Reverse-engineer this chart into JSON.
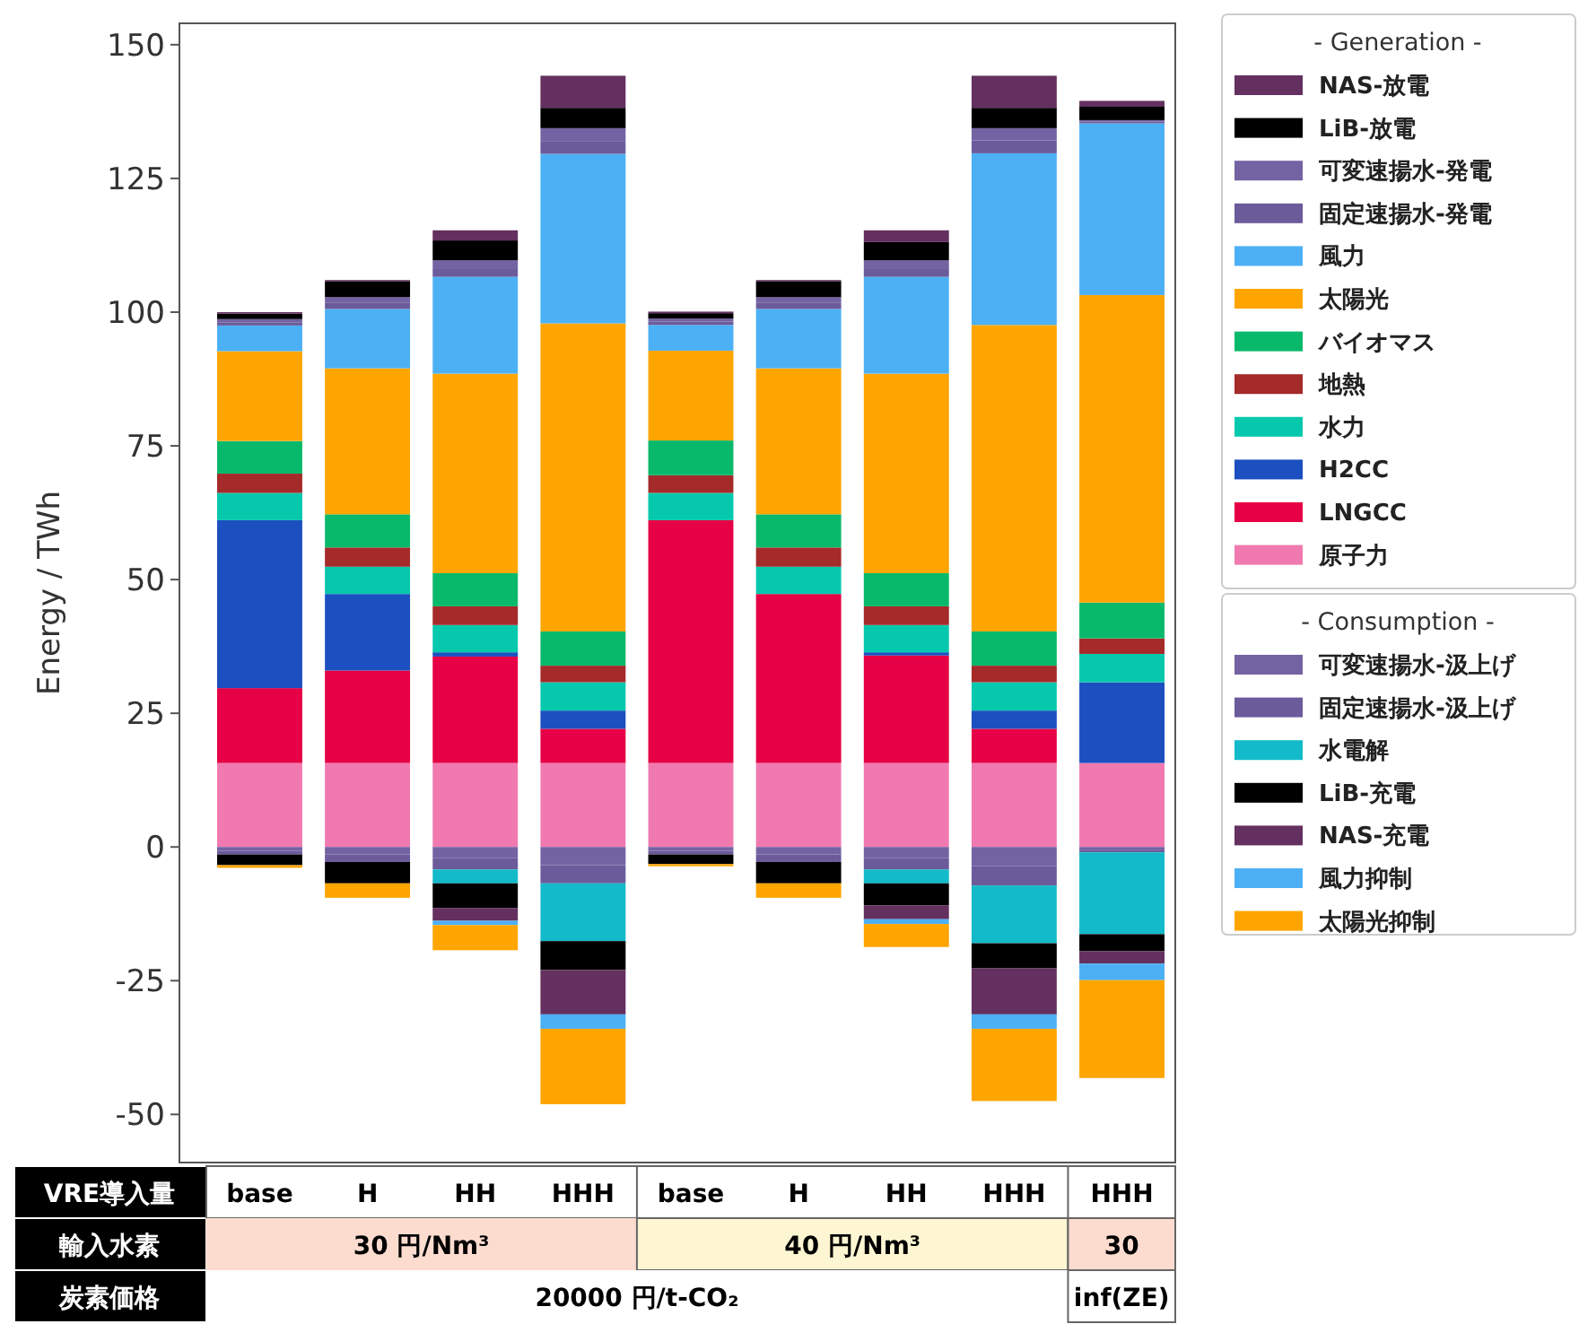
{
  "chart_data": {
    "type": "bar",
    "stacked": true,
    "ylabel": "Energy / TWh",
    "ylim": [
      -59,
      154
    ],
    "yticks": [
      -50,
      -25,
      0,
      25,
      50,
      75,
      100,
      125,
      150
    ],
    "legend": "right",
    "legend_title": "- Generation -",
    "categories": [
      "base",
      "H",
      "HH",
      "HHH",
      "base",
      "H",
      "HH",
      "HHH",
      "HHH"
    ],
    "annotations": [
      "- Consumption -",
      "VRE導入量",
      "輸入水素",
      "炭素価格",
      "30 円/Nm³",
      "40 円/Nm³",
      "30",
      "20000 円/t-CO₂",
      "inf(ZE)"
    ],
    "series": [
      {
        "name": "原子力",
        "color": "#f07ab0",
        "values": [
          15.7,
          15.7,
          15.7,
          15.7,
          15.7,
          15.7,
          15.7,
          15.7,
          15.7
        ]
      },
      {
        "name": "LNGCC",
        "color": "#e60045",
        "values": [
          14.0,
          17.3,
          19.9,
          6.4,
          45.4,
          31.6,
          20.1,
          6.4,
          0
        ]
      },
      {
        "name": "H2CC",
        "color": "#1c4fbf",
        "values": [
          31.4,
          14.3,
          0.8,
          3.4,
          0,
          0,
          0.6,
          3.4,
          15.1
        ]
      },
      {
        "name": "水力",
        "color": "#06c8ad",
        "values": [
          5.1,
          5.1,
          5.1,
          5.3,
          5.1,
          5.1,
          5.1,
          5.3,
          5.3
        ]
      },
      {
        "name": "地熱",
        "color": "#a52a2a",
        "values": [
          3.6,
          3.6,
          3.5,
          3.1,
          3.3,
          3.6,
          3.5,
          3.1,
          2.9
        ]
      },
      {
        "name": "バイオマス",
        "color": "#09b96b",
        "values": [
          6.1,
          6.2,
          6.2,
          6.4,
          6.5,
          6.2,
          6.2,
          6.4,
          6.7
        ]
      },
      {
        "name": "太陽光",
        "color": "#ffa500",
        "values": [
          16.8,
          27.3,
          37.3,
          57.6,
          16.8,
          27.3,
          37.3,
          57.3,
          57.5
        ]
      },
      {
        "name": "風力",
        "color": "#4cb0f5",
        "values": [
          4.8,
          11.1,
          18.1,
          31.7,
          4.8,
          11.1,
          18.1,
          32.1,
          32.1
        ]
      },
      {
        "name": "固定速揚水-発電",
        "color": "#6b5b9b",
        "values": [
          0.6,
          1.2,
          1.6,
          2.4,
          0.6,
          1.2,
          1.6,
          2.4,
          0.3
        ]
      },
      {
        "name": "可変速揚水-発電",
        "color": "#7463a3",
        "values": [
          0.6,
          1.0,
          1.5,
          2.4,
          0.6,
          1.0,
          1.5,
          2.3,
          0.3
        ]
      },
      {
        "name": "LiB-放電",
        "color": "#000000",
        "values": [
          1.0,
          3.0,
          3.7,
          3.8,
          1.0,
          3.0,
          3.4,
          3.8,
          2.5
        ]
      },
      {
        "name": "NAS-放電",
        "color": "#63305f",
        "values": [
          0.3,
          0.2,
          1.9,
          6.0,
          0.3,
          0.2,
          2.2,
          6.0,
          1.1
        ]
      },
      {
        "name": "可変速揚水-汲上げ",
        "color": "#7463a3",
        "values": [
          -0.7,
          -1.4,
          -2.1,
          -3.4,
          -0.7,
          -1.4,
          -2.1,
          -3.6,
          -0.5
        ]
      },
      {
        "name": "固定速揚水-汲上げ",
        "color": "#6b5b9b",
        "values": [
          -0.7,
          -1.4,
          -2.1,
          -3.4,
          -0.7,
          -1.4,
          -2.1,
          -3.6,
          -0.5
        ]
      },
      {
        "name": "水電解",
        "color": "#13bac9",
        "values": [
          0,
          0,
          -2.6,
          -10.8,
          0,
          0,
          -2.6,
          -10.8,
          -15.3
        ]
      },
      {
        "name": "LiB-充電",
        "color": "#000000",
        "values": [
          -2.0,
          -4.0,
          -4.6,
          -5.4,
          -1.8,
          -4.0,
          -4.1,
          -4.7,
          -3.2
        ]
      },
      {
        "name": "NAS-充電",
        "color": "#63305f",
        "values": [
          0,
          0,
          -2.4,
          -8.3,
          0,
          0,
          -2.6,
          -8.6,
          -2.3
        ]
      },
      {
        "name": "風力抑制",
        "color": "#4cb0f5",
        "values": [
          0,
          0,
          -0.8,
          -2.7,
          0,
          0,
          -0.9,
          -2.7,
          -3.1
        ]
      },
      {
        "name": "太陽光抑制",
        "color": "#ffa500",
        "values": [
          -0.5,
          -2.7,
          -4.7,
          -14.1,
          -0.4,
          -2.7,
          -4.3,
          -13.5,
          -18.3
        ]
      }
    ]
  }
}
